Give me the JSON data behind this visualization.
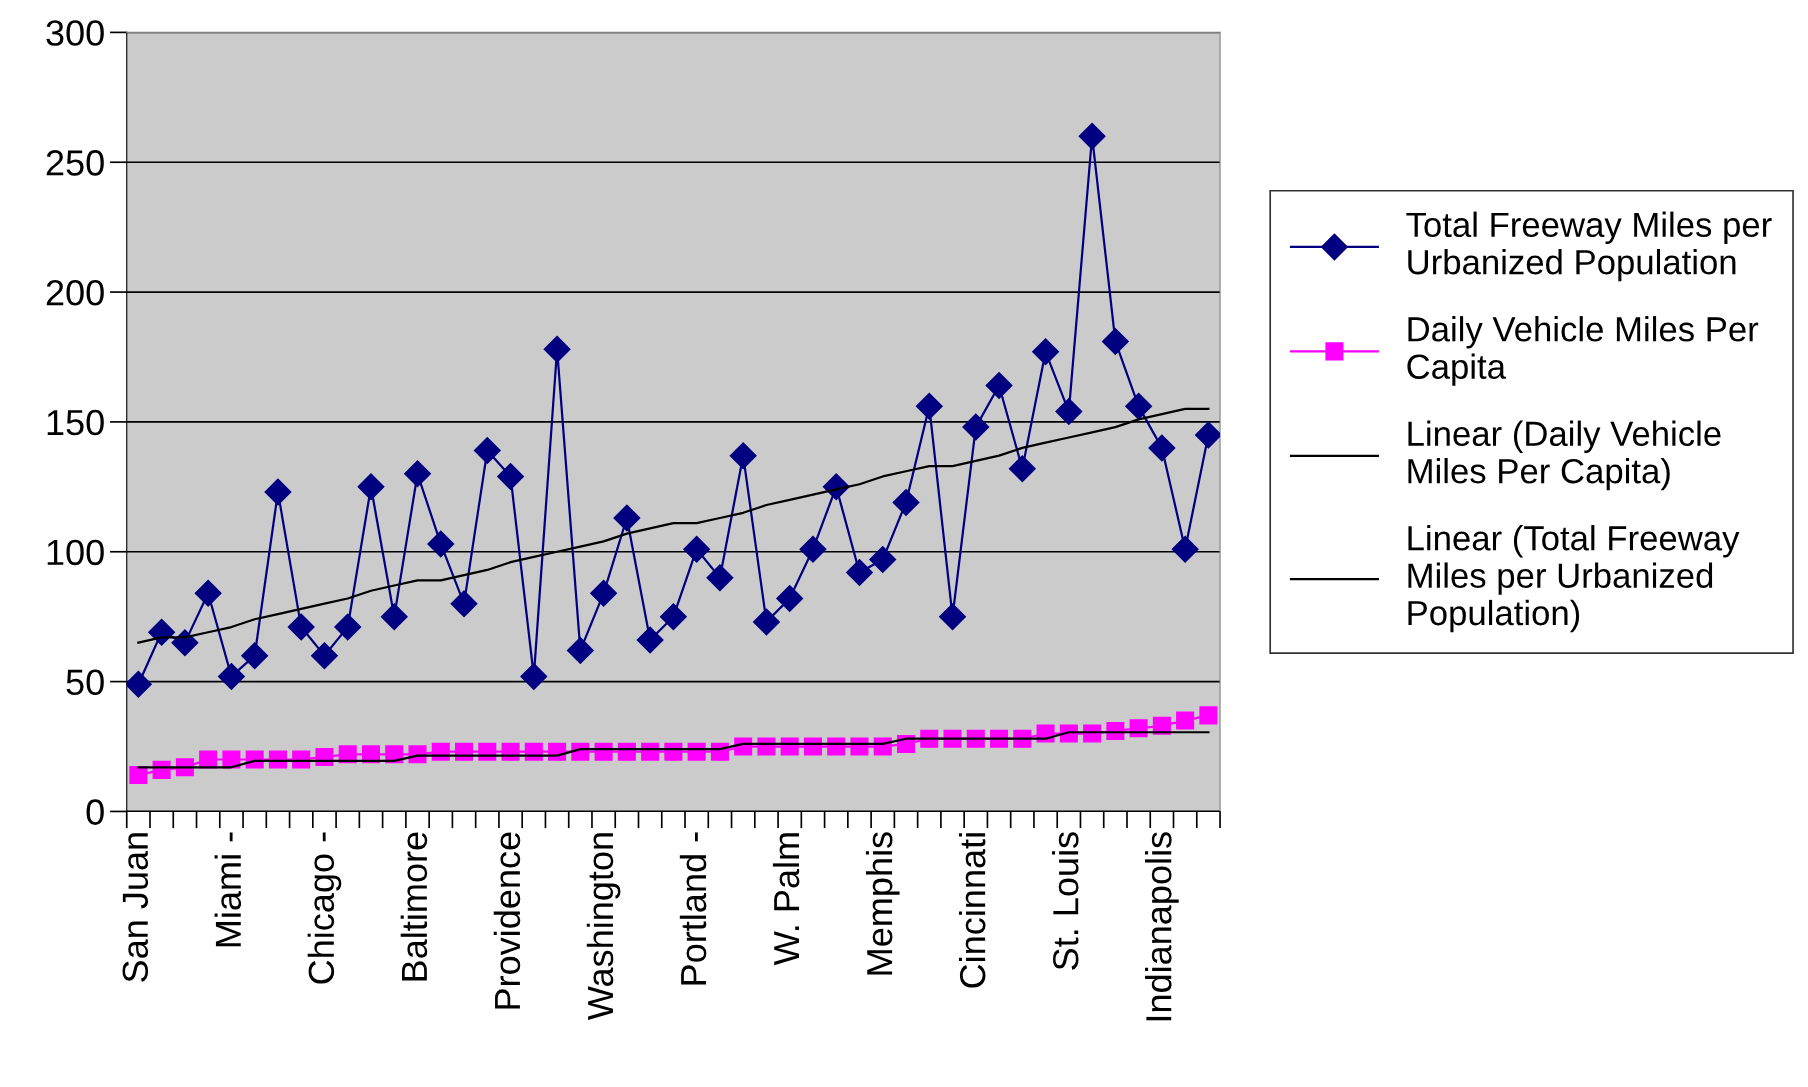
{
  "chart_data": {
    "type": "line",
    "categories": [
      "San Juan",
      null,
      null,
      null,
      "Miami -",
      null,
      null,
      null,
      "Chicago -",
      null,
      null,
      null,
      "Baltimore",
      null,
      null,
      null,
      "Providence",
      null,
      null,
      null,
      "Washington",
      null,
      null,
      null,
      "Portland -",
      null,
      null,
      null,
      "W. Palm",
      null,
      null,
      null,
      "Memphis",
      null,
      null,
      null,
      "Cincinnati",
      null,
      null,
      null,
      "St. Louis",
      null,
      null,
      null,
      "Indianapolis",
      null,
      null
    ],
    "series": [
      {
        "name": "Total Freeway Miles per\nUrbanized Population",
        "color": "#000080",
        "marker": "diamond",
        "values": [
          49,
          69,
          65,
          84,
          52,
          60,
          123,
          71,
          60,
          71,
          125,
          75,
          130,
          103,
          80,
          139,
          129,
          52,
          178,
          62,
          84,
          113,
          66,
          75,
          101,
          90,
          137,
          73,
          82,
          101,
          125,
          92,
          97,
          119,
          156,
          75,
          148,
          164,
          132,
          177,
          154,
          260,
          181,
          156,
          140,
          101,
          145
        ]
      },
      {
        "name": "Daily Vehicle Miles Per\nCapita",
        "color": "#ff00ff",
        "marker": "square",
        "values": [
          14,
          16,
          17,
          20,
          20,
          20,
          20,
          20,
          21,
          22,
          22,
          22,
          22,
          23,
          23,
          23,
          23,
          23,
          23,
          23,
          23,
          23,
          23,
          23,
          23,
          23,
          25,
          25,
          25,
          25,
          25,
          25,
          25,
          26,
          28,
          28,
          28,
          28,
          28,
          30,
          30,
          30,
          31,
          32,
          33,
          35,
          37
        ]
      },
      {
        "name": "Linear (Daily Vehicle\nMiles Per Capita)",
        "color": "#000000",
        "marker": "none",
        "values": [
          17,
          17,
          17,
          17,
          17,
          19.5,
          19.5,
          19.5,
          19.5,
          19.5,
          19.5,
          19.5,
          21.5,
          21.5,
          21.5,
          21.5,
          21.5,
          21.5,
          21.5,
          24,
          24,
          24,
          24,
          24,
          24,
          24,
          26,
          26,
          26,
          26,
          26,
          26,
          26,
          28,
          28,
          28,
          28,
          28,
          28,
          28,
          30.5,
          30.5,
          30.5,
          30.5,
          30.5,
          30.5,
          30.5
        ]
      },
      {
        "name": "Linear (Total Freeway\nMiles per Urbanized\nPopulation)",
        "color": "#000000",
        "marker": "none",
        "values": [
          65,
          67,
          67,
          69,
          71,
          74,
          76,
          78,
          80,
          82,
          85,
          87,
          89,
          89,
          91,
          93,
          96,
          98,
          100,
          102,
          104,
          107,
          109,
          111,
          111,
          113,
          115,
          118,
          120,
          122,
          124,
          126,
          129,
          131,
          133,
          133,
          135,
          137,
          140,
          142,
          144,
          146,
          148,
          151,
          153,
          155,
          155
        ]
      }
    ],
    "ylim": [
      0,
      300
    ],
    "yticks": [
      0,
      50,
      100,
      150,
      200,
      250,
      300
    ],
    "grid": "y",
    "legend": "right",
    "line_style": "solid"
  }
}
